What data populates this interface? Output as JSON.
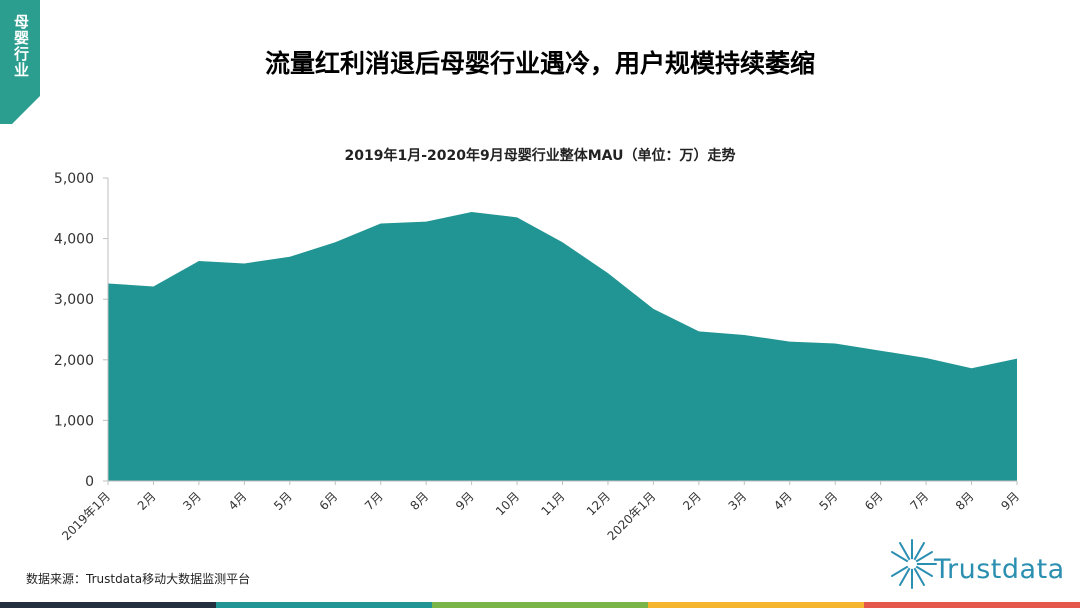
{
  "header": {
    "section_tag": "母婴行业",
    "title": "流量红利消退后母婴行业遇冷，用户规模持续萎缩"
  },
  "chart_data": {
    "type": "area",
    "title": "2019年1月-2020年9月母婴行业整体MAU（单位：万）走势",
    "categories": [
      "2019年1月",
      "2月",
      "3月",
      "4月",
      "5月",
      "6月",
      "7月",
      "8月",
      "9月",
      "10月",
      "11月",
      "12月",
      "2020年1月",
      "2月",
      "3月",
      "4月",
      "5月",
      "6月",
      "7月",
      "8月",
      "9月"
    ],
    "values": [
      3260,
      3210,
      3630,
      3590,
      3700,
      3940,
      4250,
      4280,
      4440,
      4350,
      3940,
      3430,
      2840,
      2470,
      2410,
      2300,
      2270,
      2150,
      2030,
      1860,
      2020
    ],
    "ylim": [
      0,
      5000
    ],
    "yticks": [
      0,
      1000,
      2000,
      3000,
      4000,
      5000
    ],
    "ytick_labels": [
      "0",
      "1,000",
      "2,000",
      "3,000",
      "4,000",
      "5,000"
    ],
    "xlabel": "",
    "ylabel": "",
    "grid": false,
    "legend": "none",
    "color": "#219593"
  },
  "footer": {
    "source": "数据来源：Trustdata移动大数据监测平台",
    "logo_text": "Trustdata"
  },
  "colors": {
    "tag_bg": "#2b9e8f",
    "footer_segments": [
      "#243040",
      "#219593",
      "#7ab54a",
      "#f5b52f",
      "#e6574b"
    ]
  }
}
